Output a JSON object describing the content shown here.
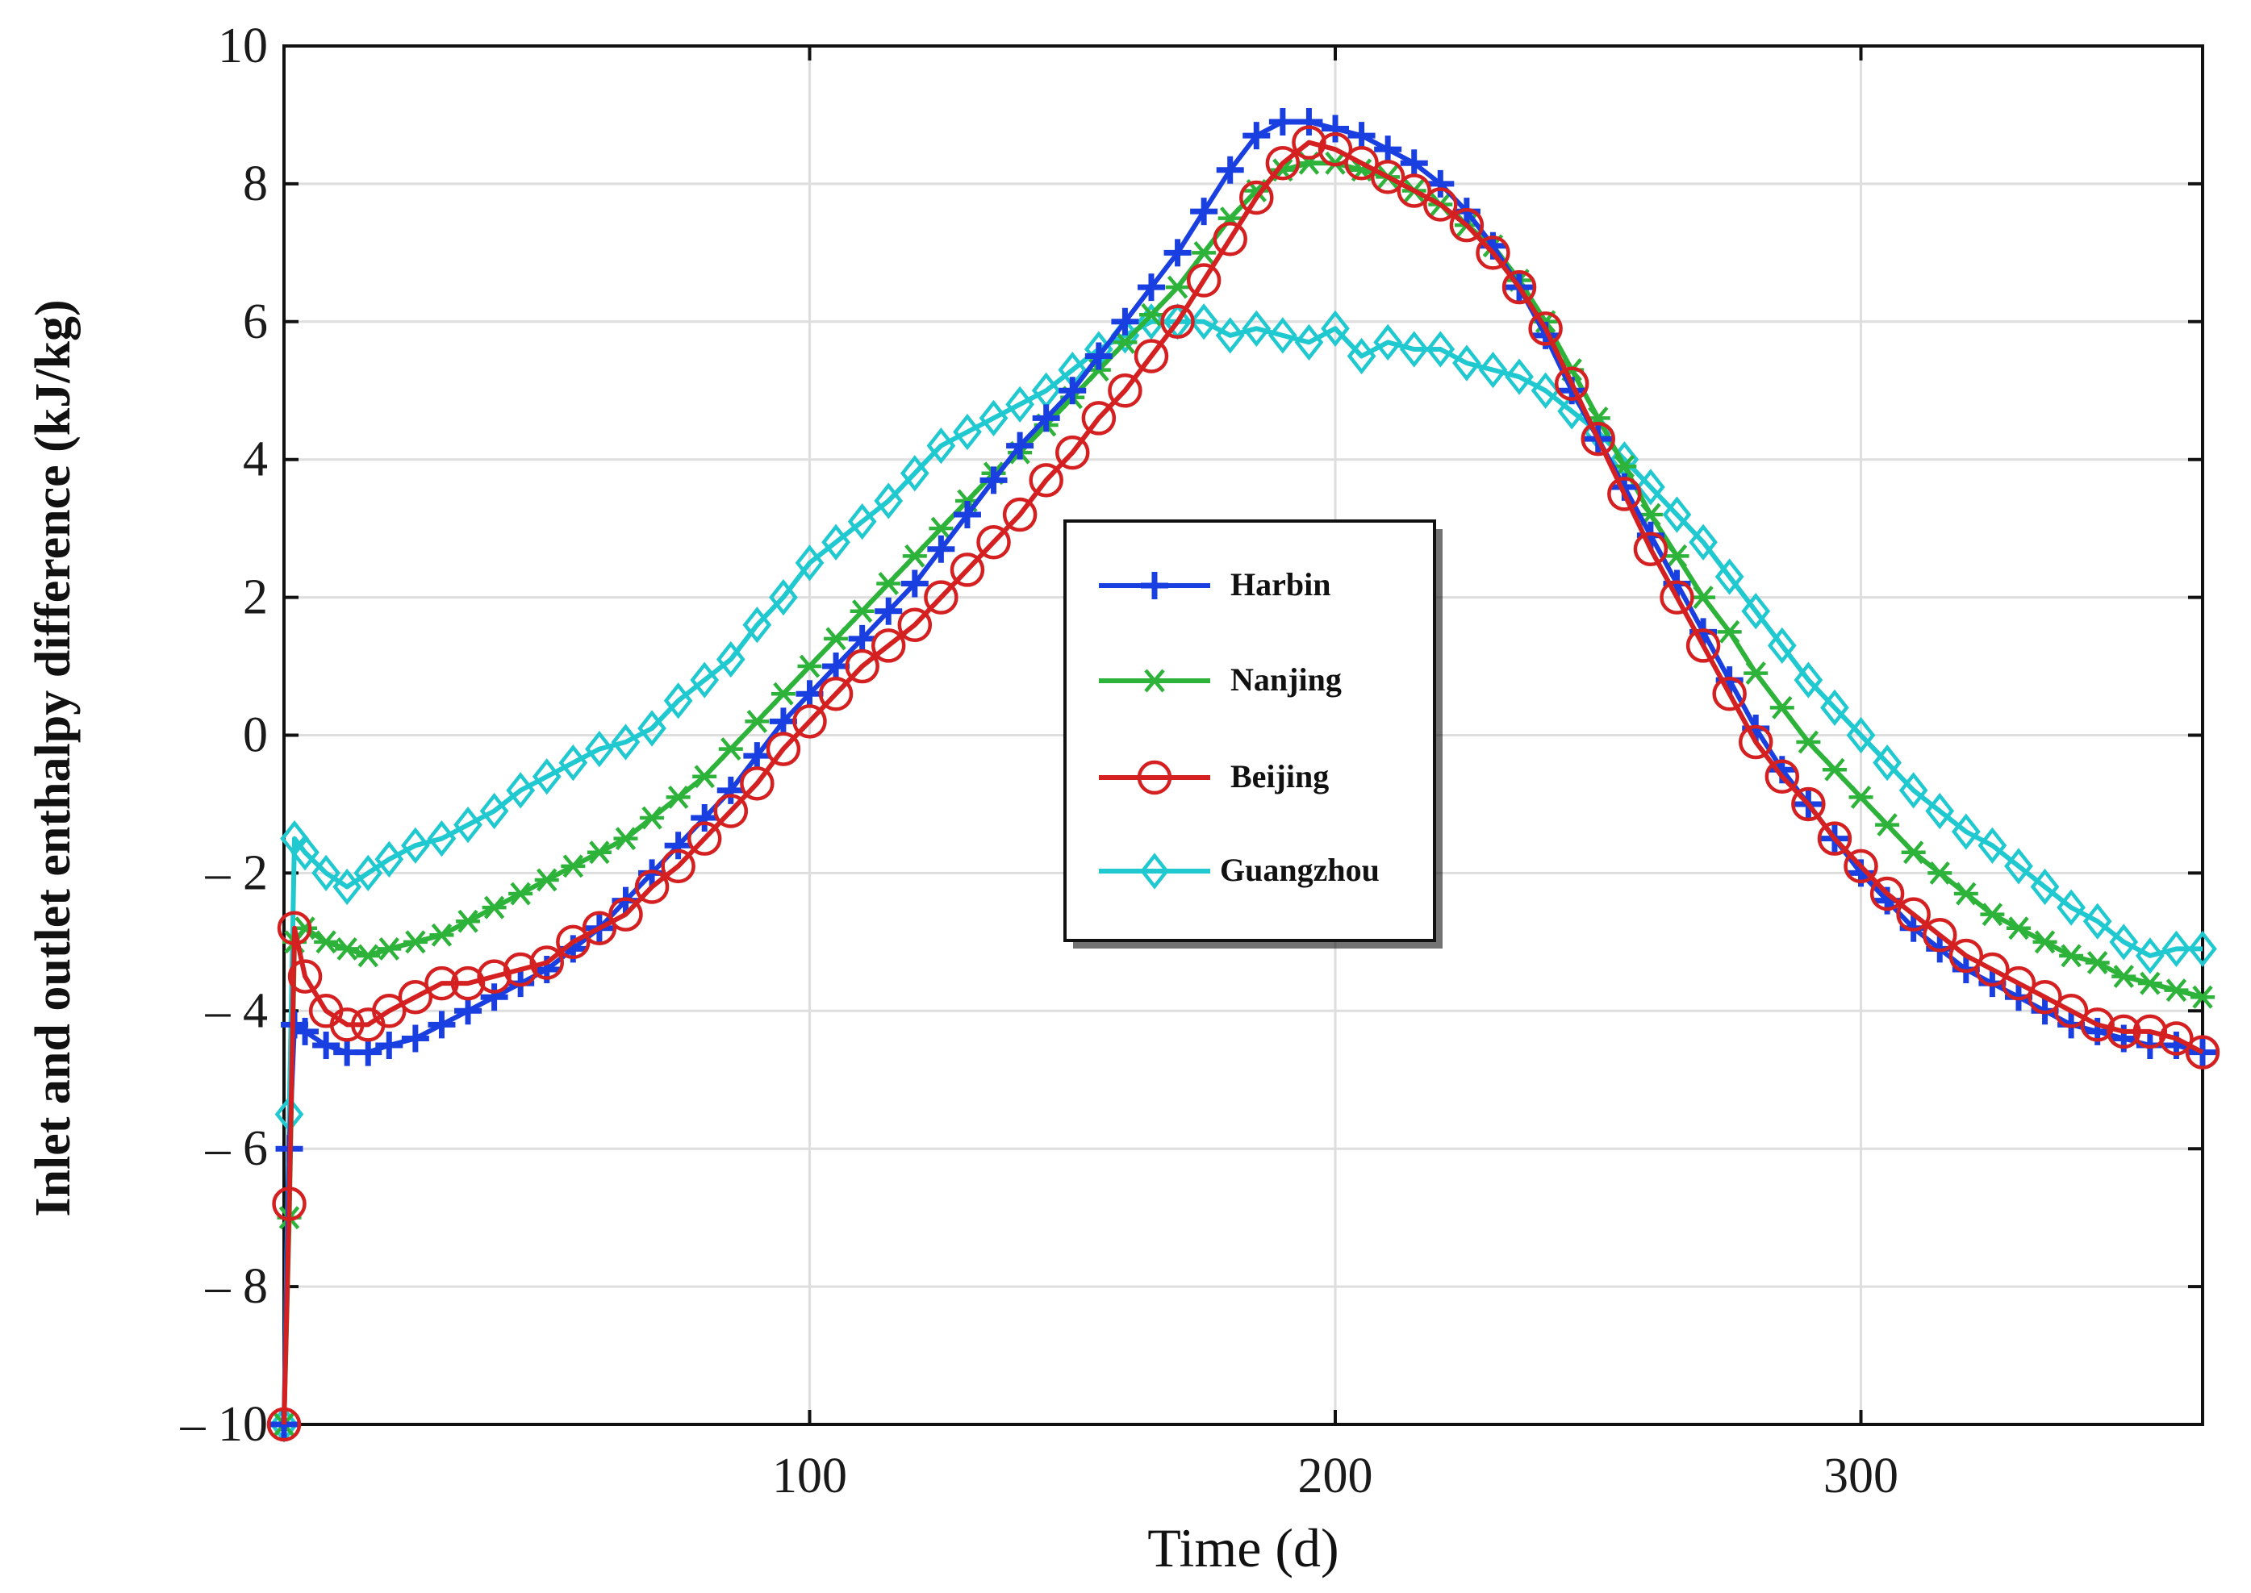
{
  "chart_data": {
    "type": "line",
    "title": "",
    "xlabel": "Time (d)",
    "ylabel": "Inlet and outlet enthalpy difference  (kJ/kg)",
    "xlim": [
      0,
      365
    ],
    "ylim": [
      -10,
      10
    ],
    "xticks": [
      100,
      200,
      300
    ],
    "xtick_labels": [
      "100",
      "200",
      "300"
    ],
    "yticks": [
      -10,
      -8,
      -6,
      -4,
      -2,
      0,
      2,
      4,
      6,
      8,
      10
    ],
    "ytick_labels": [
      "– 10",
      "– 8",
      "– 6",
      "– 4",
      "– 2",
      "0",
      "2",
      "4",
      "6",
      "8",
      "10"
    ],
    "grid": true,
    "legend_position": "center",
    "series": [
      {
        "name": "Harbin",
        "color": "#1a3fe0",
        "marker": "plus",
        "x": [
          0,
          1,
          2,
          4,
          8,
          12,
          16,
          20,
          25,
          30,
          35,
          40,
          45,
          50,
          55,
          60,
          65,
          70,
          75,
          80,
          85,
          90,
          95,
          100,
          105,
          110,
          115,
          120,
          125,
          130,
          135,
          140,
          145,
          150,
          155,
          160,
          165,
          170,
          175,
          180,
          185,
          190,
          195,
          200,
          205,
          210,
          215,
          220,
          225,
          230,
          235,
          240,
          245,
          250,
          255,
          260,
          265,
          270,
          275,
          280,
          285,
          290,
          295,
          300,
          305,
          310,
          315,
          320,
          325,
          330,
          335,
          340,
          345,
          350,
          355,
          360,
          365
        ],
        "y": [
          -10,
          -6,
          -4.2,
          -4.3,
          -4.5,
          -4.6,
          -4.6,
          -4.5,
          -4.4,
          -4.2,
          -4.0,
          -3.8,
          -3.6,
          -3.4,
          -3.1,
          -2.8,
          -2.4,
          -2.0,
          -1.6,
          -1.2,
          -0.8,
          -0.3,
          0.2,
          0.6,
          1.0,
          1.4,
          1.8,
          2.2,
          2.7,
          3.2,
          3.7,
          4.2,
          4.6,
          5.0,
          5.5,
          6.0,
          6.5,
          7.0,
          7.6,
          8.2,
          8.7,
          8.9,
          8.9,
          8.8,
          8.7,
          8.5,
          8.3,
          8.0,
          7.6,
          7.1,
          6.5,
          5.8,
          5.0,
          4.3,
          3.6,
          2.9,
          2.2,
          1.5,
          0.8,
          0.1,
          -0.5,
          -1.0,
          -1.5,
          -2.0,
          -2.4,
          -2.8,
          -3.1,
          -3.4,
          -3.6,
          -3.8,
          -4.0,
          -4.2,
          -4.3,
          -4.4,
          -4.5,
          -4.5,
          -4.6
        ]
      },
      {
        "name": "Nanjing",
        "color": "#2db23a",
        "marker": "star",
        "x": [
          0,
          1,
          2,
          4,
          8,
          12,
          16,
          20,
          25,
          30,
          35,
          40,
          45,
          50,
          55,
          60,
          65,
          70,
          75,
          80,
          85,
          90,
          95,
          100,
          105,
          110,
          115,
          120,
          125,
          130,
          135,
          140,
          145,
          150,
          155,
          160,
          165,
          170,
          175,
          180,
          185,
          190,
          195,
          200,
          205,
          210,
          215,
          220,
          225,
          230,
          235,
          240,
          245,
          250,
          255,
          260,
          265,
          270,
          275,
          280,
          285,
          290,
          295,
          300,
          305,
          310,
          315,
          320,
          325,
          330,
          335,
          340,
          345,
          350,
          355,
          360,
          365
        ],
        "y": [
          -10,
          -7,
          -3.0,
          -2.8,
          -3.0,
          -3.1,
          -3.2,
          -3.1,
          -3.0,
          -2.9,
          -2.7,
          -2.5,
          -2.3,
          -2.1,
          -1.9,
          -1.7,
          -1.5,
          -1.2,
          -0.9,
          -0.6,
          -0.2,
          0.2,
          0.6,
          1.0,
          1.4,
          1.8,
          2.2,
          2.6,
          3.0,
          3.4,
          3.8,
          4.1,
          4.5,
          4.9,
          5.3,
          5.7,
          6.1,
          6.5,
          7.0,
          7.5,
          7.9,
          8.2,
          8.3,
          8.3,
          8.2,
          8.1,
          7.9,
          7.7,
          7.4,
          7.1,
          6.6,
          6.0,
          5.3,
          4.6,
          3.9,
          3.2,
          2.6,
          2.0,
          1.5,
          0.9,
          0.4,
          -0.1,
          -0.5,
          -0.9,
          -1.3,
          -1.7,
          -2.0,
          -2.3,
          -2.6,
          -2.8,
          -3.0,
          -3.2,
          -3.3,
          -3.5,
          -3.6,
          -3.7,
          -3.8
        ]
      },
      {
        "name": "Beijing",
        "color": "#d42020",
        "marker": "circle",
        "x": [
          0,
          1,
          2,
          4,
          8,
          12,
          16,
          20,
          25,
          30,
          35,
          40,
          45,
          50,
          55,
          60,
          65,
          70,
          75,
          80,
          85,
          90,
          95,
          100,
          105,
          110,
          115,
          120,
          125,
          130,
          135,
          140,
          145,
          150,
          155,
          160,
          165,
          170,
          175,
          180,
          185,
          190,
          195,
          200,
          205,
          210,
          215,
          220,
          225,
          230,
          235,
          240,
          245,
          250,
          255,
          260,
          265,
          270,
          275,
          280,
          285,
          290,
          295,
          300,
          305,
          310,
          315,
          320,
          325,
          330,
          335,
          340,
          345,
          350,
          355,
          360,
          365
        ],
        "y": [
          -10,
          -6.8,
          -2.8,
          -3.5,
          -4.0,
          -4.2,
          -4.2,
          -4.0,
          -3.8,
          -3.6,
          -3.6,
          -3.5,
          -3.4,
          -3.3,
          -3.0,
          -2.8,
          -2.6,
          -2.2,
          -1.9,
          -1.5,
          -1.1,
          -0.7,
          -0.2,
          0.2,
          0.6,
          1.0,
          1.3,
          1.6,
          2.0,
          2.4,
          2.8,
          3.2,
          3.7,
          4.1,
          4.6,
          5.0,
          5.5,
          6.0,
          6.6,
          7.2,
          7.8,
          8.3,
          8.6,
          8.5,
          8.3,
          8.1,
          7.9,
          7.7,
          7.4,
          7.0,
          6.5,
          5.9,
          5.1,
          4.3,
          3.5,
          2.7,
          2.0,
          1.3,
          0.6,
          -0.1,
          -0.6,
          -1.0,
          -1.5,
          -1.9,
          -2.3,
          -2.6,
          -2.9,
          -3.2,
          -3.4,
          -3.6,
          -3.8,
          -4.0,
          -4.2,
          -4.3,
          -4.3,
          -4.4,
          -4.6
        ]
      },
      {
        "name": "Guangzhou",
        "color": "#20c8d0",
        "marker": "diamond",
        "x": [
          0,
          1,
          2,
          4,
          8,
          12,
          16,
          20,
          25,
          30,
          35,
          40,
          45,
          50,
          55,
          60,
          65,
          70,
          75,
          80,
          85,
          90,
          95,
          100,
          105,
          110,
          115,
          120,
          125,
          130,
          135,
          140,
          145,
          150,
          155,
          160,
          165,
          170,
          175,
          180,
          185,
          190,
          195,
          200,
          205,
          210,
          215,
          220,
          225,
          230,
          235,
          240,
          245,
          250,
          255,
          260,
          265,
          270,
          275,
          280,
          285,
          290,
          295,
          300,
          305,
          310,
          315,
          320,
          325,
          330,
          335,
          340,
          345,
          350,
          355,
          360,
          365
        ],
        "y": [
          -10,
          -5.5,
          -1.5,
          -1.7,
          -2.0,
          -2.2,
          -2.0,
          -1.8,
          -1.6,
          -1.5,
          -1.3,
          -1.1,
          -0.8,
          -0.6,
          -0.4,
          -0.2,
          -0.1,
          0.1,
          0.5,
          0.8,
          1.1,
          1.6,
          2.0,
          2.5,
          2.8,
          3.1,
          3.4,
          3.8,
          4.2,
          4.4,
          4.6,
          4.8,
          5.0,
          5.3,
          5.6,
          5.8,
          6.0,
          6.0,
          6.0,
          5.8,
          5.9,
          5.8,
          5.7,
          5.9,
          5.5,
          5.7,
          5.6,
          5.6,
          5.4,
          5.3,
          5.2,
          5.0,
          4.7,
          4.4,
          4.0,
          3.6,
          3.2,
          2.8,
          2.3,
          1.8,
          1.3,
          0.8,
          0.4,
          0.0,
          -0.4,
          -0.8,
          -1.1,
          -1.4,
          -1.6,
          -1.9,
          -2.2,
          -2.5,
          -2.7,
          -3.0,
          -3.2,
          -3.1,
          -3.1
        ]
      }
    ]
  }
}
